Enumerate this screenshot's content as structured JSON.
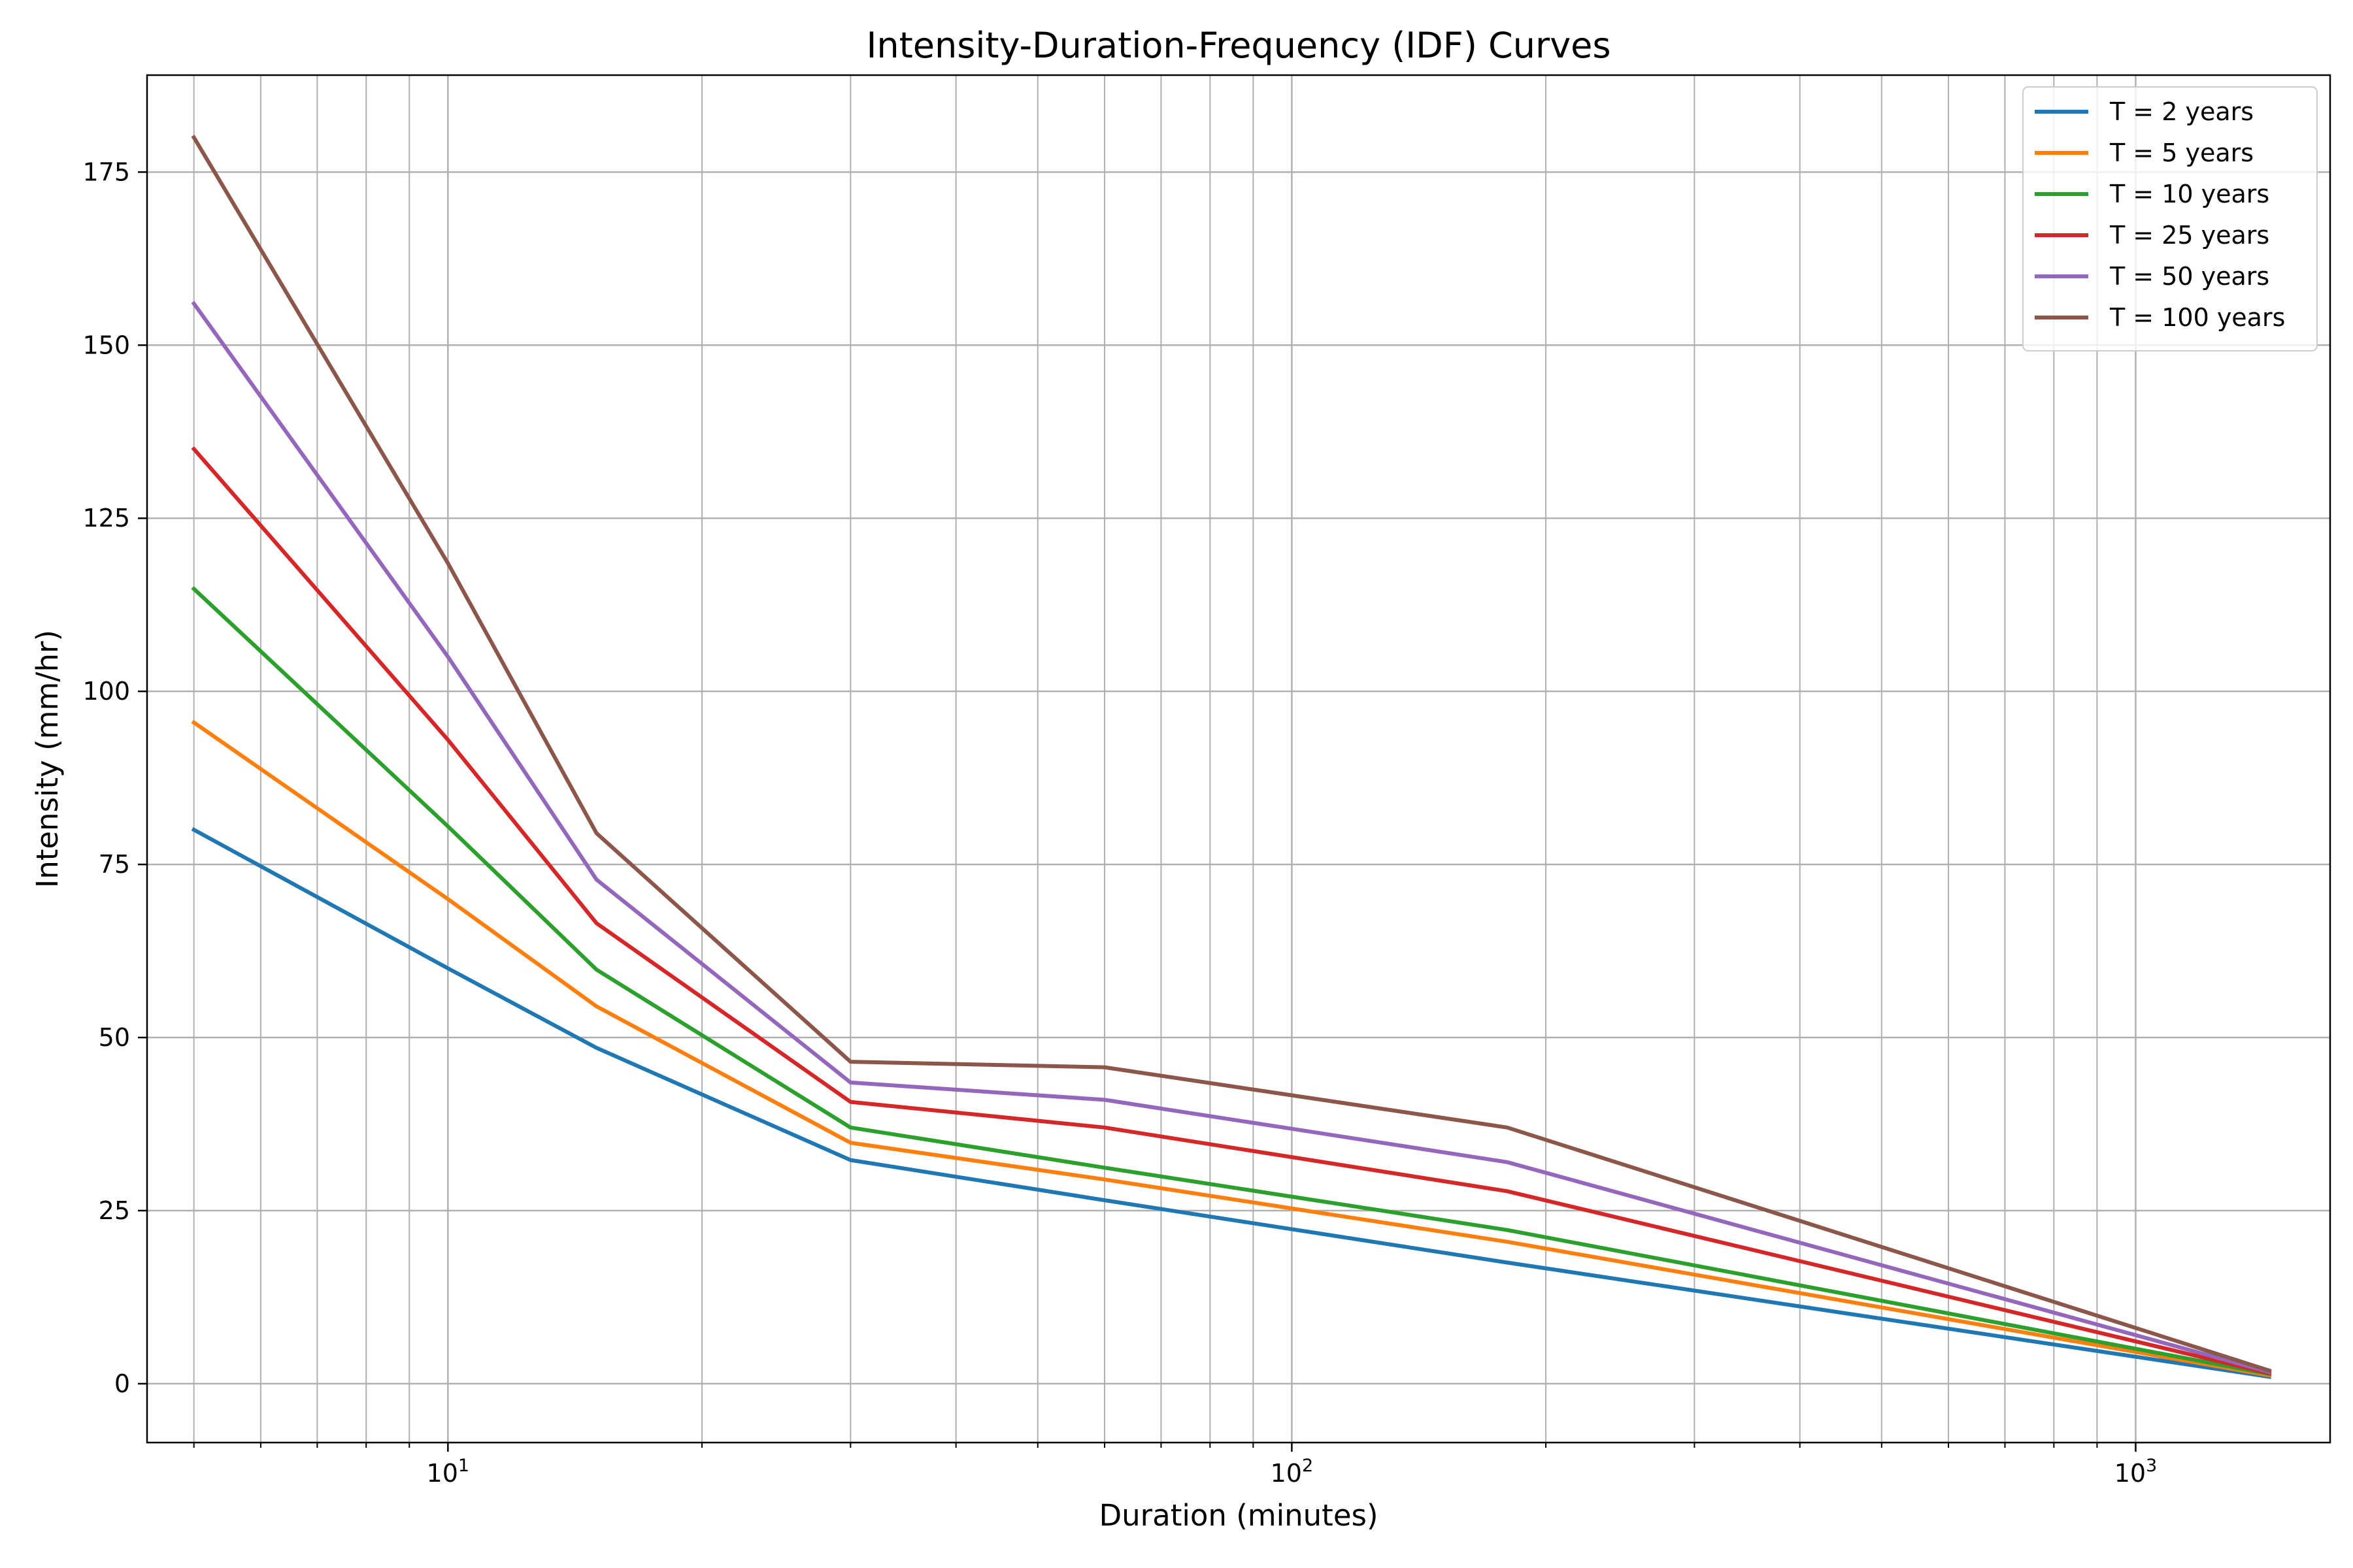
{
  "chart_data": {
    "type": "line",
    "title": "Intensity-Duration-Frequency (IDF) Curves",
    "xlabel": "Duration (minutes)",
    "ylabel": "Intensity (mm/hr)",
    "xscale": "log",
    "xlim": [
      4.4,
      1700
    ],
    "ylim": [
      -8.5,
      189
    ],
    "grid": true,
    "grid_which": "both",
    "legend_position": "top-right",
    "x": [
      5,
      10,
      15,
      30,
      60,
      180,
      1440
    ],
    "x_ticks": [
      {
        "base": "10",
        "exp": "1",
        "value": 10
      },
      {
        "base": "10",
        "exp": "2",
        "value": 100
      },
      {
        "base": "10",
        "exp": "3",
        "value": 1000
      }
    ],
    "y_ticks": [
      0,
      25,
      50,
      75,
      100,
      125,
      150,
      175
    ],
    "series": [
      {
        "name": "T = 2 years",
        "color": "#1f77b4",
        "values": [
          80,
          60,
          48.5,
          32.3,
          26.5,
          17.5,
          1
        ]
      },
      {
        "name": "T = 5 years",
        "color": "#ff7f0e",
        "values": [
          95.5,
          70,
          54.5,
          34.8,
          29.5,
          20.5,
          1.2
        ]
      },
      {
        "name": "T = 10 years",
        "color": "#2ca02c",
        "values": [
          114.8,
          80.5,
          59.8,
          37,
          31.2,
          22.2,
          1.4
        ]
      },
      {
        "name": "T = 25 years",
        "color": "#d62728",
        "values": [
          135,
          93,
          66.5,
          40.7,
          37,
          27.8,
          1.5
        ]
      },
      {
        "name": "T = 50 years",
        "color": "#9467bd",
        "values": [
          156,
          105,
          72.8,
          43.5,
          41,
          32,
          1.7
        ]
      },
      {
        "name": "T = 100 years",
        "color": "#8c564b",
        "values": [
          180,
          118.5,
          79.5,
          46.5,
          45.7,
          37,
          1.9
        ]
      }
    ]
  }
}
